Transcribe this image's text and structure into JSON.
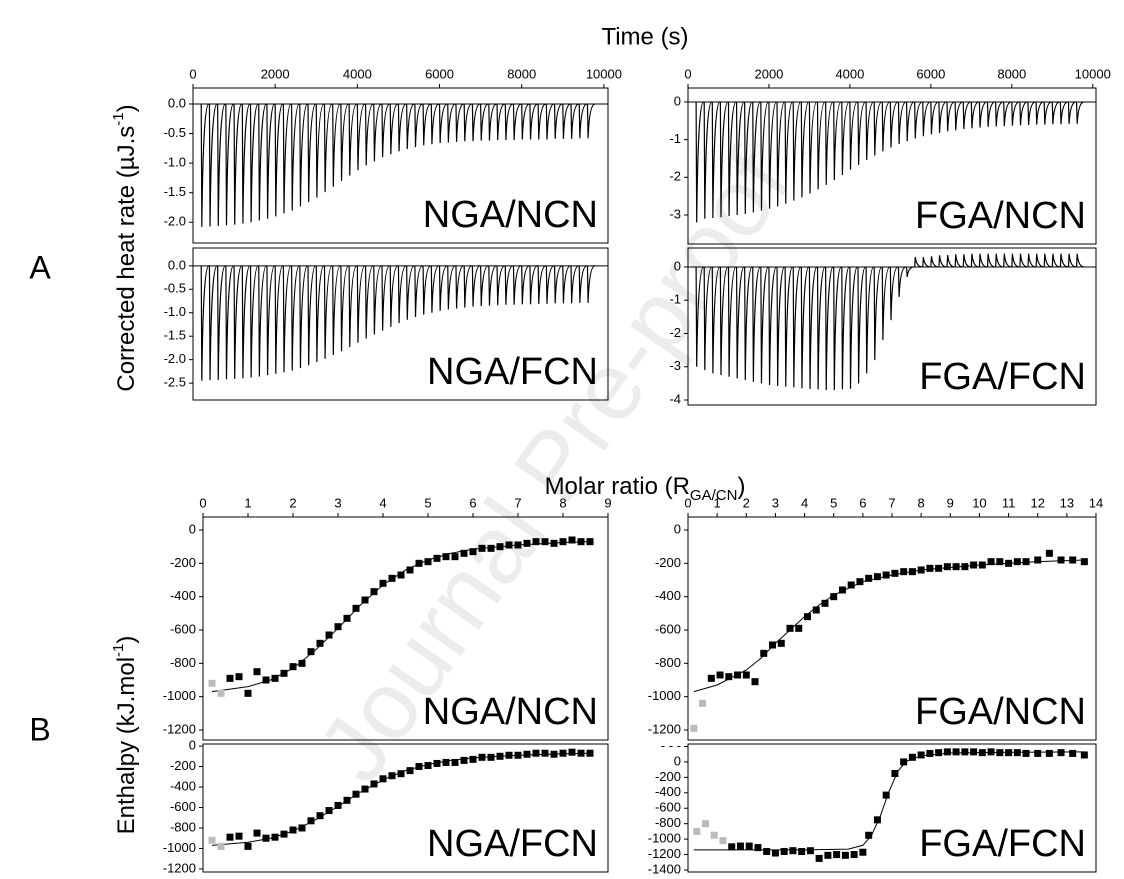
{
  "figure": {
    "panel_letters": [
      "A",
      "B"
    ],
    "watermark": "Journal Pre-proof",
    "time_label": "Time (s)",
    "heat_label": {
      "text": "Corrected heat rate (µJ.s",
      "sup": "-1",
      "tail": ")"
    },
    "ratio_label": {
      "text": "Molar ratio (R",
      "sub": "GA/CN",
      "tail": ")"
    },
    "enthalpy_label": {
      "text": "Enthalpy (kJ.mol",
      "sup": "-1",
      "tail": ")"
    }
  },
  "chart_data": [
    {
      "type": "thermogram",
      "label": "NGA/NCN",
      "color": "#000000",
      "xlim": [
        0,
        10100
      ],
      "xticks": [
        0,
        2000,
        4000,
        6000,
        8000,
        10000
      ],
      "ylim": [
        -2.35,
        0.27
      ],
      "yticks": [
        {
          "value": 0,
          "label": "0.0"
        },
        -0.5,
        {
          "value": -1,
          "label": "-1.0"
        },
        -1.5,
        {
          "value": -2,
          "label": "-2.0"
        }
      ],
      "x": [
        200,
        400,
        600,
        800,
        1000,
        1200,
        1400,
        1600,
        1800,
        2000,
        2200,
        2400,
        2600,
        2800,
        3000,
        3200,
        3400,
        3600,
        3800,
        4000,
        4200,
        4400,
        4600,
        4800,
        5000,
        5200,
        5400,
        5600,
        5800,
        6000,
        6200,
        6400,
        6600,
        6800,
        7000,
        7200,
        7400,
        7600,
        7800,
        8000,
        8200,
        8400,
        8600,
        8800,
        9000,
        9200,
        9400,
        9600
      ],
      "values": [
        -2.08,
        -2.07,
        -2.06,
        -2.05,
        -2.04,
        -2.02,
        -2.0,
        -1.97,
        -1.94,
        -1.9,
        -1.85,
        -1.8,
        -1.73,
        -1.66,
        -1.58,
        -1.49,
        -1.4,
        -1.3,
        -1.21,
        -1.12,
        -1.04,
        -0.97,
        -0.9,
        -0.85,
        -0.8,
        -0.76,
        -0.73,
        -0.7,
        -0.68,
        -0.66,
        -0.65,
        -0.64,
        -0.63,
        -0.63,
        -0.62,
        -0.62,
        -0.61,
        -0.61,
        -0.61,
        -0.6,
        -0.6,
        -0.6,
        -0.6,
        -0.59,
        -0.59,
        -0.59,
        -0.58,
        -0.58
      ]
    },
    {
      "type": "thermogram",
      "label": "NGA/FCN",
      "color": "#000000",
      "xlim": [
        0,
        10100
      ],
      "ylim": [
        -2.86,
        0.38
      ],
      "yticks": [
        {
          "value": 0,
          "label": "0.0"
        },
        -0.5,
        {
          "value": -1,
          "label": "-1.0"
        },
        -1.5,
        {
          "value": -2,
          "label": "-2.0"
        },
        -2.5
      ],
      "x": [
        200,
        400,
        600,
        800,
        1000,
        1200,
        1400,
        1600,
        1800,
        2000,
        2200,
        2400,
        2600,
        2800,
        3000,
        3200,
        3400,
        3600,
        3800,
        4000,
        4200,
        4400,
        4600,
        4800,
        5000,
        5200,
        5400,
        5600,
        5800,
        6000,
        6200,
        6400,
        6600,
        6800,
        7000,
        7200,
        7400,
        7600,
        7800,
        8000,
        8200,
        8400,
        8600,
        8800,
        9000,
        9200,
        9400,
        9600
      ],
      "values": [
        -2.45,
        -2.44,
        -2.43,
        -2.42,
        -2.41,
        -2.4,
        -2.38,
        -2.36,
        -2.33,
        -2.3,
        -2.27,
        -2.23,
        -2.18,
        -2.12,
        -2.05,
        -1.98,
        -1.9,
        -1.82,
        -1.73,
        -1.64,
        -1.55,
        -1.46,
        -1.38,
        -1.3,
        -1.22,
        -1.15,
        -1.09,
        -1.04,
        -1.0,
        -0.96,
        -0.93,
        -0.91,
        -0.89,
        -0.87,
        -0.86,
        -0.85,
        -0.84,
        -0.83,
        -0.83,
        -0.82,
        -0.82,
        -0.81,
        -0.81,
        -0.8,
        -0.8,
        -0.8,
        -0.79,
        -0.79
      ]
    },
    {
      "type": "thermogram",
      "label": "FGA/NCN",
      "color": "#000000",
      "xlim": [
        0,
        10080
      ],
      "xticks": [
        0,
        2000,
        4000,
        6000,
        8000,
        10000
      ],
      "ylim": [
        -3.77,
        0.37
      ],
      "yticks": [
        0,
        -1,
        -2,
        -3
      ],
      "x": [
        200,
        400,
        600,
        800,
        1000,
        1200,
        1400,
        1600,
        1800,
        2000,
        2200,
        2400,
        2600,
        2800,
        3000,
        3200,
        3400,
        3600,
        3800,
        4000,
        4200,
        4400,
        4600,
        4800,
        5000,
        5200,
        5400,
        5600,
        5800,
        6000,
        6200,
        6400,
        6600,
        6800,
        7000,
        7200,
        7400,
        7600,
        7800,
        8000,
        8200,
        8400,
        8600,
        8800,
        9000,
        9200,
        9400,
        9600
      ],
      "values": [
        -3.2,
        -3.1,
        -3.08,
        -3.06,
        -3.03,
        -3.0,
        -2.97,
        -2.93,
        -2.88,
        -2.83,
        -2.77,
        -2.7,
        -2.62,
        -2.53,
        -2.43,
        -2.32,
        -2.2,
        -2.07,
        -1.94,
        -1.8,
        -1.67,
        -1.54,
        -1.42,
        -1.31,
        -1.21,
        -1.12,
        -1.04,
        -0.97,
        -0.91,
        -0.86,
        -0.82,
        -0.78,
        -0.75,
        -0.72,
        -0.7,
        -0.68,
        -0.66,
        -0.65,
        -0.64,
        -0.63,
        -0.62,
        -0.61,
        -0.6,
        -0.6,
        -0.59,
        -0.59,
        -0.58,
        -0.58
      ]
    },
    {
      "type": "thermogram",
      "label": "FGA/FCN",
      "color": "#000000",
      "xlim": [
        0,
        10080
      ],
      "ylim": [
        -4.15,
        0.57
      ],
      "yticks": [
        0,
        -1,
        -2,
        -3,
        -4
      ],
      "x": [
        200,
        400,
        600,
        800,
        1000,
        1200,
        1400,
        1600,
        1800,
        2000,
        2200,
        2400,
        2600,
        2800,
        3000,
        3200,
        3400,
        3600,
        3800,
        4000,
        4200,
        4400,
        4600,
        4800,
        5000,
        5200,
        5400,
        5600,
        5800,
        6000,
        6200,
        6400,
        6600,
        6800,
        7000,
        7200,
        7400,
        7600,
        7800,
        8000,
        8200,
        8400,
        8600,
        8800,
        9000,
        9200,
        9400,
        9600
      ],
      "values": [
        -3.0,
        -3.1,
        -3.2,
        -3.25,
        -3.3,
        -3.35,
        -3.4,
        -3.45,
        -3.5,
        -3.55,
        -3.58,
        -3.6,
        -3.62,
        -3.65,
        -3.67,
        -3.68,
        -3.7,
        -3.7,
        -3.68,
        -3.66,
        -3.5,
        -3.2,
        -2.8,
        -2.2,
        -1.6,
        -0.9,
        -0.3,
        0.3,
        0.3,
        0.32,
        0.35,
        0.36,
        0.38,
        0.38,
        0.4,
        0.4,
        0.4,
        0.4,
        0.4,
        0.4,
        0.4,
        0.4,
        0.4,
        0.4,
        0.4,
        0.4,
        0.4,
        0.4
      ]
    },
    {
      "type": "enthalpy",
      "label": "NGA/NCN",
      "xlim": [
        0,
        9
      ],
      "xticks": [
        0,
        1,
        2,
        3,
        4,
        5,
        6,
        7,
        8,
        9
      ],
      "ylim": [
        -1260,
        78
      ],
      "yticks": [
        0,
        -200,
        -400,
        -600,
        -800,
        -1000,
        -1200
      ],
      "series": [
        {
          "color": "#bbbbbb",
          "x": [
            0.2,
            0.4
          ],
          "values": [
            -920,
            -980
          ]
        },
        {
          "color": "#000000",
          "x": [
            0.6,
            0.8,
            1,
            1.2,
            1.4,
            1.6,
            1.8,
            2,
            2.2,
            2.4,
            2.6,
            2.8,
            3,
            3.2,
            3.4,
            3.6,
            3.8,
            4,
            4.2,
            4.4,
            4.6,
            4.8,
            5,
            5.2,
            5.4,
            5.6,
            5.8,
            6,
            6.2,
            6.4,
            6.6,
            6.8,
            7,
            7.2,
            7.4,
            7.6,
            7.8,
            8,
            8.2,
            8.4,
            8.6
          ],
          "values": [
            -890,
            -880,
            -980,
            -850,
            -900,
            -890,
            -860,
            -820,
            -800,
            -730,
            -680,
            -630,
            -580,
            -530,
            -470,
            -420,
            -370,
            -320,
            -290,
            -270,
            -240,
            -200,
            -190,
            -170,
            -160,
            -160,
            -140,
            -130,
            -110,
            -110,
            -100,
            -90,
            -90,
            -80,
            -70,
            -70,
            -80,
            -70,
            -60,
            -70,
            -70
          ]
        }
      ],
      "fit": {
        "color": "#000000",
        "x": [
          0.2,
          1,
          1.5,
          2,
          2.5,
          3,
          3.5,
          4,
          4.5,
          5,
          5.5,
          6,
          7,
          8,
          8.6
        ],
        "values": [
          -970,
          -940,
          -900,
          -830,
          -720,
          -590,
          -450,
          -330,
          -240,
          -180,
          -140,
          -115,
          -90,
          -75,
          -70
        ]
      }
    },
    {
      "type": "enthalpy",
      "label": "NGA/FCN",
      "xlim": [
        0,
        9
      ],
      "ylim": [
        -1230,
        20
      ],
      "yticks": [
        0,
        -200,
        -400,
        -600,
        -800,
        -1000,
        -1200
      ],
      "series": [
        {
          "color": "#bbbbbb",
          "x": [
            0.2,
            0.4
          ],
          "values": [
            -920,
            -980
          ]
        },
        {
          "color": "#000000",
          "x": [
            0.6,
            0.8,
            1,
            1.2,
            1.4,
            1.6,
            1.8,
            2,
            2.2,
            2.4,
            2.6,
            2.8,
            3,
            3.2,
            3.4,
            3.6,
            3.8,
            4,
            4.2,
            4.4,
            4.6,
            4.8,
            5,
            5.2,
            5.4,
            5.6,
            5.8,
            6,
            6.2,
            6.4,
            6.6,
            6.8,
            7,
            7.2,
            7.4,
            7.6,
            7.8,
            8,
            8.2,
            8.4,
            8.6
          ],
          "values": [
            -890,
            -880,
            -980,
            -850,
            -900,
            -890,
            -860,
            -820,
            -800,
            -730,
            -680,
            -630,
            -580,
            -530,
            -470,
            -420,
            -370,
            -320,
            -290,
            -270,
            -240,
            -200,
            -190,
            -170,
            -160,
            -160,
            -140,
            -130,
            -110,
            -110,
            -100,
            -90,
            -90,
            -80,
            -70,
            -70,
            -80,
            -70,
            -60,
            -70,
            -70
          ]
        }
      ],
      "fit": {
        "color": "#000000",
        "x": [
          0.2,
          1,
          1.5,
          2,
          2.5,
          3,
          3.5,
          4,
          4.5,
          5,
          5.5,
          6,
          7,
          8,
          8.6
        ],
        "values": [
          -970,
          -940,
          -900,
          -830,
          -720,
          -590,
          -450,
          -330,
          -240,
          -180,
          -140,
          -115,
          -90,
          -75,
          -70
        ]
      }
    },
    {
      "type": "enthalpy",
      "label": "FGA/NCN",
      "xlim": [
        0,
        14
      ],
      "xticks": [
        0,
        1,
        2,
        3,
        4,
        5,
        6,
        7,
        8,
        9,
        10,
        11,
        12,
        13,
        14
      ],
      "ylim": [
        -1260,
        78
      ],
      "yticks": [
        0,
        -200,
        -400,
        -600,
        -800,
        -1000,
        -1200
      ],
      "series": [
        {
          "color": "#bbbbbb",
          "x": [
            0.2,
            0.5
          ],
          "values": [
            -1190,
            -1040
          ]
        },
        {
          "color": "#000000",
          "x": [
            0.8,
            1.1,
            1.4,
            1.7,
            2,
            2.3,
            2.6,
            2.9,
            3.2,
            3.5,
            3.8,
            4.1,
            4.4,
            4.7,
            5,
            5.3,
            5.6,
            5.9,
            6.2,
            6.5,
            6.8,
            7.1,
            7.4,
            7.7,
            8,
            8.3,
            8.6,
            8.9,
            9.2,
            9.5,
            9.8,
            10.1,
            10.4,
            10.7,
            11,
            11.3,
            11.6,
            12,
            12.4,
            12.8,
            13.2,
            13.6
          ],
          "values": [
            -890,
            -870,
            -880,
            -870,
            -870,
            -910,
            -740,
            -690,
            -680,
            -590,
            -590,
            -520,
            -480,
            -440,
            -400,
            -360,
            -330,
            -310,
            -290,
            -280,
            -270,
            -260,
            -250,
            -250,
            -240,
            -230,
            -230,
            -220,
            -220,
            -220,
            -210,
            -210,
            -190,
            -190,
            -200,
            -190,
            -190,
            -180,
            -140,
            -180,
            -180,
            -190
          ]
        }
      ],
      "fit": {
        "color": "#000000",
        "x": [
          0.2,
          1,
          2,
          2.5,
          3,
          3.5,
          4,
          4.5,
          5,
          6,
          7,
          8,
          10,
          12,
          13.6
        ],
        "values": [
          -970,
          -930,
          -840,
          -770,
          -680,
          -600,
          -520,
          -450,
          -390,
          -310,
          -270,
          -240,
          -210,
          -190,
          -180
        ]
      }
    },
    {
      "type": "enthalpy",
      "label": "FGA/FCN",
      "xlim": [
        0,
        14
      ],
      "ylim": [
        -1426,
        232
      ],
      "yticks": [
        {
          "value": 200,
          "label": "- - -"
        },
        0,
        -200,
        -400,
        -600,
        -800,
        -1000,
        -1200,
        -1400
      ],
      "series": [
        {
          "color": "#bbbbbb",
          "x": [
            0.3,
            0.6,
            0.9,
            1.2
          ],
          "values": [
            -900,
            -800,
            -950,
            -1020
          ]
        },
        {
          "color": "#000000",
          "x": [
            1.5,
            1.8,
            2.1,
            2.4,
            2.7,
            3,
            3.3,
            3.6,
            3.9,
            4.2,
            4.5,
            4.8,
            5.1,
            5.4,
            5.7,
            6,
            6.2,
            6.5,
            6.8,
            7.1,
            7.4,
            7.7,
            8,
            8.3,
            8.6,
            8.9,
            9.2,
            9.5,
            9.8,
            10.1,
            10.4,
            10.7,
            11,
            11.3,
            11.6,
            12,
            12.4,
            12.8,
            13.2,
            13.6
          ],
          "values": [
            -1100,
            -1090,
            -1090,
            -1110,
            -1160,
            -1180,
            -1160,
            -1150,
            -1160,
            -1150,
            -1250,
            -1210,
            -1200,
            -1210,
            -1200,
            -1170,
            -950,
            -750,
            -430,
            -150,
            0,
            60,
            90,
            110,
            120,
            130,
            130,
            130,
            130,
            120,
            130,
            120,
            120,
            120,
            110,
            110,
            110,
            120,
            110,
            90
          ]
        }
      ],
      "fit": {
        "color": "#000000",
        "x": [
          0.2,
          2,
          4,
          5.5,
          6,
          6.3,
          6.6,
          6.9,
          7.2,
          7.5,
          8,
          9,
          11,
          13.6
        ],
        "values": [
          -1140,
          -1140,
          -1140,
          -1130,
          -1080,
          -950,
          -700,
          -380,
          -120,
          10,
          80,
          115,
          125,
          130
        ]
      }
    }
  ]
}
